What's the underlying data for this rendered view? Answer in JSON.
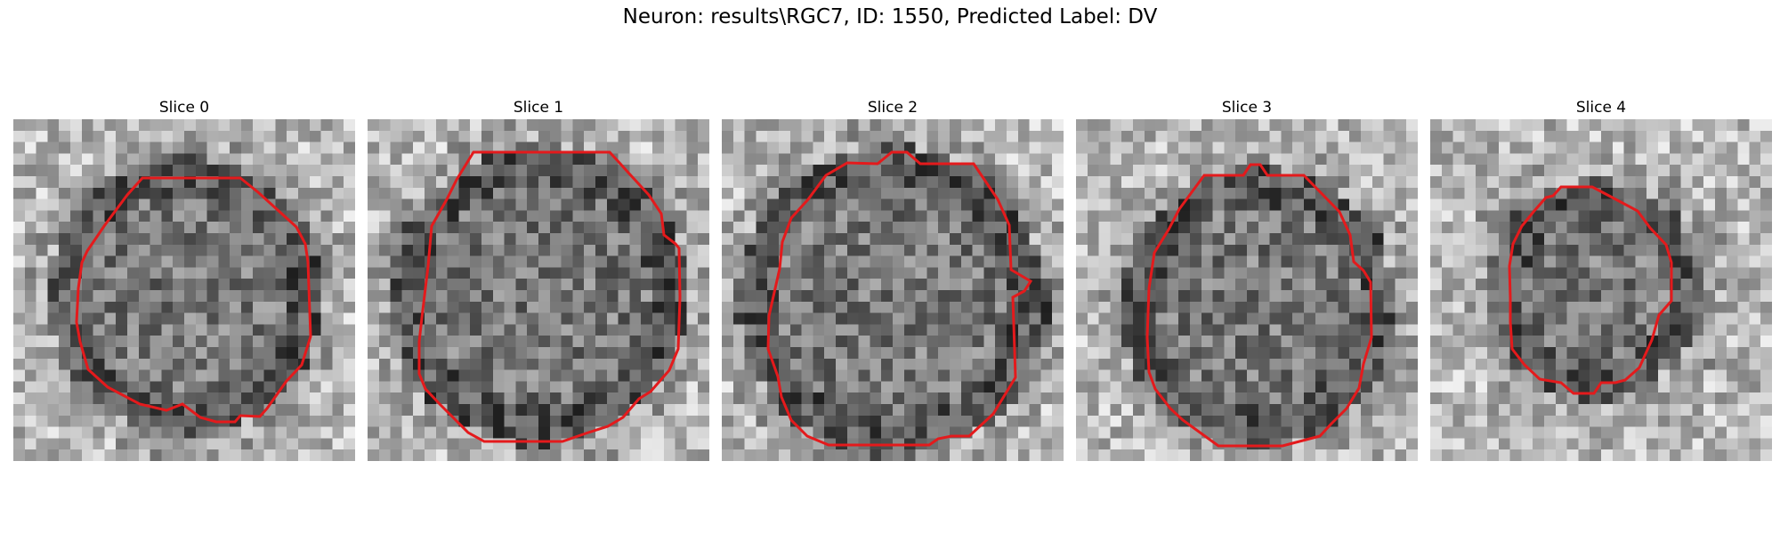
{
  "figure": {
    "title": "Neuron: results\\RGC7, ID: 1550, Predicted Label: DV"
  },
  "panels": [
    {
      "title": "Slice 0"
    },
    {
      "title": "Slice 1"
    },
    {
      "title": "Slice 2"
    },
    {
      "title": "Slice 3"
    },
    {
      "title": "Slice 4"
    }
  ],
  "colors": {
    "contour": "#e41a1c",
    "background": "#ffffff"
  }
}
